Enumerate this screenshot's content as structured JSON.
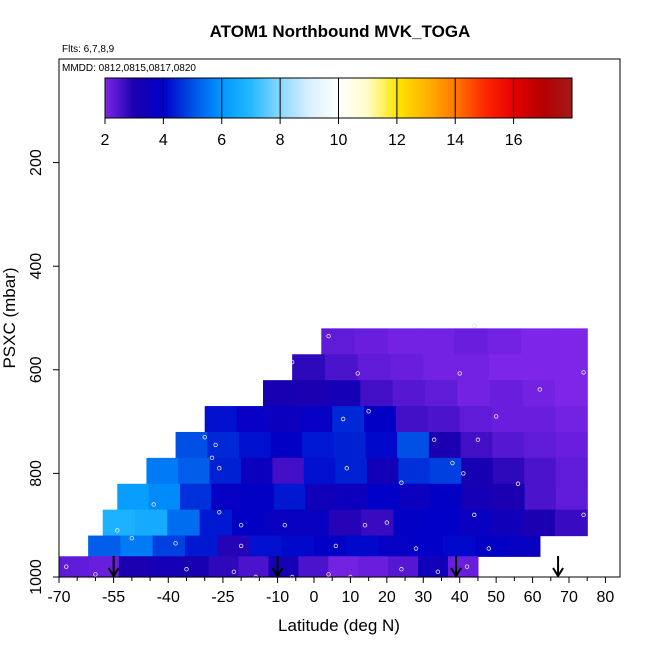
{
  "chart_data": {
    "type": "heatmap",
    "title": "ATOM1 Northbound MVK_TOGA",
    "subtitle_flights": "Flts: 6,7,8,9",
    "subtitle_dates": "MMDD: 0812,0815,0817,0820",
    "xlabel": "Latitude (deg N)",
    "ylabel": "PSXC (mbar)",
    "xlim": [
      -70,
      84
    ],
    "ylim": [
      1000,
      0
    ],
    "x_ticks": [
      -70,
      -55,
      -40,
      -25,
      -10,
      0,
      10,
      20,
      30,
      40,
      50,
      60,
      70,
      80
    ],
    "x_tick_labels": [
      "-70",
      "-55",
      "-40",
      "-25",
      "-10",
      "0",
      "10",
      "20",
      "30",
      "40",
      "50",
      "60",
      "70",
      "80"
    ],
    "y_ticks": [
      200,
      400,
      600,
      800,
      1000
    ],
    "y_tick_labels": [
      "200",
      "400",
      "600",
      "800",
      "1000"
    ],
    "colorbar": {
      "min": 2,
      "max": 18,
      "ticks": [
        2,
        4,
        6,
        8,
        10,
        12,
        14,
        16
      ],
      "tick_labels": [
        "2",
        "4",
        "6",
        "8",
        "10",
        "12",
        "14",
        "16"
      ],
      "stops": [
        {
          "v": 2,
          "c": "#7d26e8"
        },
        {
          "v": 3,
          "c": "#1a00b0"
        },
        {
          "v": 4,
          "c": "#0000c8"
        },
        {
          "v": 5,
          "c": "#0050e6"
        },
        {
          "v": 6,
          "c": "#0098ff"
        },
        {
          "v": 7,
          "c": "#24b8ff"
        },
        {
          "v": 8,
          "c": "#8ad8ff"
        },
        {
          "v": 9,
          "c": "#d8f0ff"
        },
        {
          "v": 10,
          "c": "#ffffff"
        },
        {
          "v": 11,
          "c": "#fffcc8"
        },
        {
          "v": 12,
          "c": "#ffe600"
        },
        {
          "v": 13,
          "c": "#ffb400"
        },
        {
          "v": 14,
          "c": "#ff7800"
        },
        {
          "v": 15,
          "c": "#ff2800"
        },
        {
          "v": 16,
          "c": "#e60000"
        },
        {
          "v": 17,
          "c": "#b40000"
        },
        {
          "v": 18,
          "c": "#a01a1a"
        }
      ]
    },
    "bands": [
      {
        "p_top": 520,
        "p_bot": 570,
        "lat_min": 2,
        "lat_max": 75,
        "values": [
          2.3,
          2.2,
          2.1,
          2.1,
          2.2,
          2.1,
          2.0,
          2.0
        ]
      },
      {
        "p_top": 570,
        "p_bot": 620,
        "lat_min": -6,
        "lat_max": 75,
        "values": [
          2.8,
          2.5,
          2.3,
          2.2,
          2.1,
          2.1,
          2.0,
          2.0,
          2.0
        ]
      },
      {
        "p_top": 620,
        "p_bot": 670,
        "lat_min": -14,
        "lat_max": 75,
        "values": [
          3.1,
          3.0,
          3.2,
          2.6,
          2.4,
          2.3,
          2.1,
          2.2,
          2.1,
          2.0
        ]
      },
      {
        "p_top": 670,
        "p_bot": 720,
        "lat_min": -30,
        "lat_max": 75,
        "values": [
          4.2,
          3.8,
          3.6,
          3.8,
          4.5,
          3.9,
          2.6,
          2.5,
          2.3,
          2.2,
          2.2,
          2.1
        ]
      },
      {
        "p_top": 720,
        "p_bot": 770,
        "lat_min": -38,
        "lat_max": 75,
        "values": [
          5.0,
          4.5,
          4.2,
          3.9,
          4.3,
          4.4,
          4.1,
          5.0,
          3.0,
          2.6,
          2.4,
          2.3,
          2.2
        ]
      },
      {
        "p_top": 770,
        "p_bot": 820,
        "lat_min": -46,
        "lat_max": 75,
        "values": [
          5.6,
          5.2,
          4.4,
          3.6,
          2.6,
          4.2,
          4.4,
          3.3,
          4.6,
          4.8,
          3.1,
          2.8,
          2.5,
          2.3
        ]
      },
      {
        "p_top": 820,
        "p_bot": 870,
        "lat_min": -54,
        "lat_max": 75,
        "values": [
          6.2,
          5.8,
          4.6,
          3.8,
          3.9,
          4.3,
          3.4,
          3.5,
          4.0,
          3.6,
          3.9,
          3.2,
          3.0,
          2.5,
          2.3
        ]
      },
      {
        "p_top": 870,
        "p_bot": 920,
        "lat_min": -58,
        "lat_max": 75,
        "values": [
          6.8,
          6.6,
          5.4,
          4.3,
          3.9,
          3.7,
          3.7,
          2.9,
          2.7,
          3.9,
          4.0,
          3.7,
          3.4,
          3.0,
          2.7
        ]
      },
      {
        "p_top": 920,
        "p_bot": 960,
        "lat_min": -62,
        "lat_max": 62,
        "values": [
          5.2,
          5.6,
          4.8,
          4.3,
          2.9,
          4.2,
          4.1,
          3.9,
          4.1,
          3.8,
          4.0,
          4.1,
          3.9,
          3.7
        ]
      },
      {
        "p_top": 960,
        "p_bot": 1000,
        "lat_min": -70,
        "lat_max": 45,
        "values": [
          2.3,
          2.2,
          3.0,
          3.2,
          3.1,
          2.8,
          2.5,
          3.2,
          2.5,
          2.1,
          2.2,
          2.4,
          3.4,
          2.2
        ]
      }
    ],
    "sample_points": [
      [
        4,
        535
      ],
      [
        44,
        515
      ],
      [
        -6,
        585
      ],
      [
        12,
        607
      ],
      [
        40,
        607
      ],
      [
        62,
        638
      ],
      [
        74,
        605
      ],
      [
        15,
        680
      ],
      [
        8,
        695
      ],
      [
        50,
        690
      ],
      [
        -30,
        730
      ],
      [
        -27,
        745
      ],
      [
        33,
        735
      ],
      [
        45,
        735
      ],
      [
        -28,
        770
      ],
      [
        -26,
        790
      ],
      [
        38,
        780
      ],
      [
        41,
        800
      ],
      [
        9,
        790
      ],
      [
        24,
        818
      ],
      [
        56,
        820
      ],
      [
        -44,
        860
      ],
      [
        -26,
        875
      ],
      [
        -20,
        900
      ],
      [
        -8,
        900
      ],
      [
        14,
        900
      ],
      [
        20,
        895
      ],
      [
        44,
        880
      ],
      [
        -54,
        910
      ],
      [
        -50,
        925
      ],
      [
        -38,
        935
      ],
      [
        -20,
        940
      ],
      [
        6,
        940
      ],
      [
        28,
        945
      ],
      [
        48,
        945
      ],
      [
        74,
        880
      ],
      [
        -68,
        980
      ],
      [
        -60,
        995
      ],
      [
        -35,
        985
      ],
      [
        -22,
        990
      ],
      [
        -16,
        1000
      ],
      [
        -6,
        1000
      ],
      [
        4,
        995
      ],
      [
        10,
        1000
      ],
      [
        24,
        985
      ],
      [
        34,
        990
      ],
      [
        42,
        980
      ]
    ],
    "arrows_lat": [
      -55,
      -10,
      39,
      67
    ]
  }
}
